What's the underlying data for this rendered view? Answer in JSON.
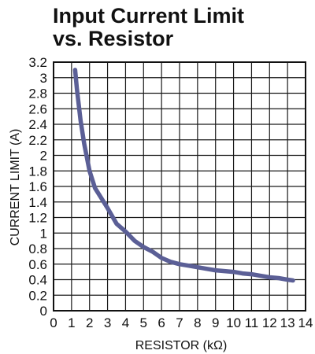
{
  "chart_data": {
    "type": "line",
    "title": "Input Current Limit",
    "subtitle": "vs. Resistor",
    "xlabel": "RESISTOR (kΩ)",
    "ylabel": "CURRENT LIMIT (A)",
    "xlim": [
      0,
      14
    ],
    "ylim": [
      0,
      3.2
    ],
    "x_ticks": [
      "0",
      "1",
      "2",
      "3",
      "4",
      "5",
      "6",
      "7",
      "8",
      "9",
      "10",
      "11",
      "12",
      "13",
      "14"
    ],
    "y_ticks": [
      "0",
      "0.2",
      "0.4",
      "0.6",
      "0.8",
      "1",
      "1.2",
      "1.4",
      "1.6",
      "1.8",
      "2",
      "2.2",
      "2.4",
      "2.6",
      "2.8",
      "3",
      "3.2"
    ],
    "grid": true,
    "legend": "none",
    "series": [
      {
        "color": "#5b5f96",
        "x": [
          1.2,
          1.3,
          1.5,
          1.7,
          2.0,
          2.3,
          2.6,
          3.0,
          3.5,
          4.0,
          4.5,
          5.0,
          5.5,
          6.0,
          6.5,
          7.0,
          7.5,
          8.0,
          8.5,
          9.0,
          9.5,
          10.0,
          10.5,
          11.0,
          11.5,
          12.0,
          12.5,
          13.0,
          13.3
        ],
        "y": [
          3.1,
          2.85,
          2.45,
          2.15,
          1.8,
          1.58,
          1.47,
          1.32,
          1.12,
          1.02,
          0.9,
          0.82,
          0.76,
          0.68,
          0.63,
          0.6,
          0.58,
          0.56,
          0.54,
          0.52,
          0.51,
          0.5,
          0.48,
          0.47,
          0.45,
          0.43,
          0.42,
          0.4,
          0.39
        ]
      }
    ]
  }
}
